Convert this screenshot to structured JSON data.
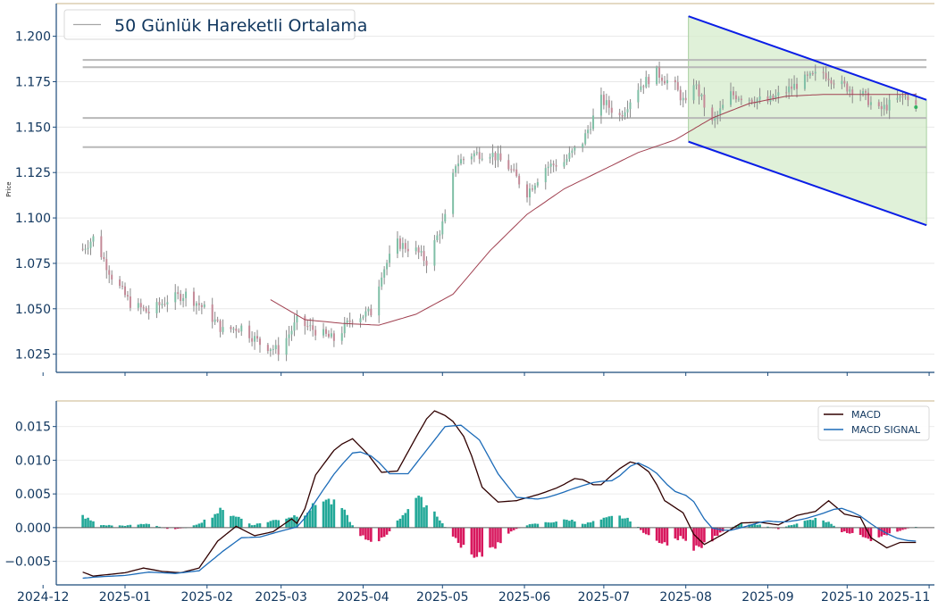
{
  "chart_data": [
    {
      "type": "candlestick",
      "ylabel": "Price",
      "ylim": [
        1.015,
        1.218
      ],
      "yticks": [
        1.025,
        1.05,
        1.075,
        1.1,
        1.125,
        1.15,
        1.175,
        1.2
      ],
      "ytick_labels": [
        "1.025",
        "1.050",
        "1.075",
        "1.100",
        "1.125",
        "1.150",
        "1.175",
        "1.200"
      ],
      "xlim": [
        "2024-12-06",
        "2025-11-03"
      ],
      "grid": "horizontal",
      "legend": {
        "position": "top-left",
        "entries": [
          "50 Günlük Hareketli Ortalama"
        ]
      },
      "horizontal_levels": [
        1.187,
        1.183,
        1.155,
        1.139
      ],
      "price_anchors": [
        [
          "2024-12-16",
          1.083
        ],
        [
          "2024-12-20",
          1.089
        ],
        [
          "2024-12-27",
          1.068
        ],
        [
          "2025-01-03",
          1.053
        ],
        [
          "2025-01-10",
          1.048
        ],
        [
          "2025-01-17",
          1.055
        ],
        [
          "2025-01-24",
          1.058
        ],
        [
          "2025-01-31",
          1.05
        ],
        [
          "2025-02-07",
          1.038
        ],
        [
          "2025-02-14",
          1.04
        ],
        [
          "2025-02-21",
          1.031
        ],
        [
          "2025-02-28",
          1.027
        ],
        [
          "2025-03-07",
          1.043
        ],
        [
          "2025-03-14",
          1.038
        ],
        [
          "2025-03-21",
          1.033
        ],
        [
          "2025-03-28",
          1.045
        ],
        [
          "2025-04-04",
          1.048
        ],
        [
          "2025-04-08",
          1.07
        ],
        [
          "2025-04-14",
          1.086
        ],
        [
          "2025-04-21",
          1.082
        ],
        [
          "2025-04-25",
          1.076
        ],
        [
          "2025-05-02",
          1.1
        ],
        [
          "2025-05-06",
          1.13
        ],
        [
          "2025-05-12",
          1.135
        ],
        [
          "2025-05-19",
          1.136
        ],
        [
          "2025-05-26",
          1.128
        ],
        [
          "2025-06-02",
          1.114
        ],
        [
          "2025-06-09",
          1.128
        ],
        [
          "2025-06-16",
          1.131
        ],
        [
          "2025-06-23",
          1.142
        ],
        [
          "2025-06-30",
          1.165
        ],
        [
          "2025-07-07",
          1.156
        ],
        [
          "2025-07-14",
          1.172
        ],
        [
          "2025-07-21",
          1.18
        ],
        [
          "2025-07-28",
          1.172
        ],
        [
          "2025-08-01",
          1.162
        ],
        [
          "2025-08-04",
          1.175
        ],
        [
          "2025-08-11",
          1.152
        ],
        [
          "2025-08-18",
          1.168
        ],
        [
          "2025-08-25",
          1.166
        ],
        [
          "2025-09-01",
          1.164
        ],
        [
          "2025-09-08",
          1.17
        ],
        [
          "2025-09-15",
          1.176
        ],
        [
          "2025-09-22",
          1.18
        ],
        [
          "2025-09-29",
          1.173
        ],
        [
          "2025-10-06",
          1.169
        ],
        [
          "2025-10-13",
          1.159
        ],
        [
          "2025-10-20",
          1.165
        ],
        [
          "2025-10-24",
          1.167
        ],
        [
          "2025-10-27",
          1.161
        ]
      ],
      "moving_average_50": [
        [
          "2025-02-25",
          1.055
        ],
        [
          "2025-03-10",
          1.044
        ],
        [
          "2025-03-24",
          1.042
        ],
        [
          "2025-04-07",
          1.041
        ],
        [
          "2025-04-21",
          1.047
        ],
        [
          "2025-05-05",
          1.058
        ],
        [
          "2025-05-19",
          1.082
        ],
        [
          "2025-06-02",
          1.102
        ],
        [
          "2025-06-16",
          1.116
        ],
        [
          "2025-06-30",
          1.126
        ],
        [
          "2025-07-14",
          1.136
        ],
        [
          "2025-07-28",
          1.143
        ],
        [
          "2025-08-11",
          1.155
        ],
        [
          "2025-08-25",
          1.163
        ],
        [
          "2025-09-08",
          1.167
        ],
        [
          "2025-09-22",
          1.168
        ],
        [
          "2025-10-06",
          1.168
        ],
        [
          "2025-10-20",
          1.168
        ],
        [
          "2025-10-27",
          1.168
        ]
      ],
      "channel": {
        "x": [
          "2025-08-02",
          "2025-10-31"
        ],
        "upper": [
          1.211,
          1.165
        ],
        "lower": [
          1.142,
          1.096
        ],
        "upper_color": "#0a1ee6",
        "lower_color": "#0a1ee6",
        "fill": "#d5eccc"
      },
      "colors": {
        "up": "#1d9484",
        "down": "#c42a5a",
        "candle": "#8a8a8a",
        "moving_average": "#a04050",
        "levels": "#b8b8b8",
        "axis": "#1b4a7a",
        "text": "#10365e",
        "top_border": "#c8b48a"
      }
    },
    {
      "type": "line+bar",
      "ylim": [
        -0.0085,
        0.0188
      ],
      "yticks": [
        -0.005,
        0,
        0.005,
        0.01,
        0.015
      ],
      "ytick_labels": [
        "−0.005",
        "0.000",
        "0.005",
        "0.010",
        "0.015"
      ],
      "xlim": [
        "2024-12-06",
        "2025-11-03"
      ],
      "xtick_dates": [
        "2024-12-01",
        "2025-01-01",
        "2025-02-01",
        "2025-03-01",
        "2025-04-01",
        "2025-05-01",
        "2025-06-01",
        "2025-07-01",
        "2025-08-01",
        "2025-09-01",
        "2025-10-01",
        "2025-11-01"
      ],
      "xtick_labels": [
        "2024-12",
        "2025-01",
        "2025-02",
        "2025-03",
        "2025-04",
        "2025-05",
        "2025-06",
        "2025-07",
        "2025-08",
        "2025-09",
        "2025-10",
        "2025-11"
      ],
      "grid": "horizontal",
      "legend": {
        "position": "top-right",
        "entries": [
          "MACD",
          "MACD SIGNAL"
        ]
      },
      "series": [
        {
          "name": "MACD",
          "color": "#300000",
          "points": [
            [
              "2024-12-16",
              -0.0066
            ],
            [
              "2024-12-20",
              -0.0072
            ],
            [
              "2025-01-01",
              -0.0067
            ],
            [
              "2025-01-08",
              -0.006
            ],
            [
              "2025-01-15",
              -0.0065
            ],
            [
              "2025-01-22",
              -0.0067
            ],
            [
              "2025-01-29",
              -0.006
            ],
            [
              "2025-02-05",
              -0.002
            ],
            [
              "2025-02-12",
              0.0002
            ],
            [
              "2025-02-19",
              -0.0012
            ],
            [
              "2025-02-26",
              -0.0006
            ],
            [
              "2025-03-05",
              0.0013
            ],
            [
              "2025-03-08",
              0.0003
            ],
            [
              "2025-03-14",
              0.0078
            ],
            [
              "2025-03-22",
              0.012
            ],
            [
              "2025-03-28",
              0.0132
            ],
            [
              "2025-04-03",
              0.0108
            ],
            [
              "2025-04-08",
              0.0082
            ],
            [
              "2025-04-14",
              0.0084
            ],
            [
              "2025-04-21",
              0.0134
            ],
            [
              "2025-04-27",
              0.0175
            ],
            [
              "2025-05-04",
              0.0163
            ],
            [
              "2025-05-10",
              0.013
            ],
            [
              "2025-05-16",
              0.006
            ],
            [
              "2025-05-22",
              0.0038
            ],
            [
              "2025-05-29",
              0.004
            ],
            [
              "2025-06-07",
              0.005
            ],
            [
              "2025-06-14",
              0.006
            ],
            [
              "2025-06-21",
              0.0075
            ],
            [
              "2025-06-29",
              0.006
            ],
            [
              "2025-07-06",
              0.0085
            ],
            [
              "2025-07-12",
              0.01
            ],
            [
              "2025-07-19",
              0.008
            ],
            [
              "2025-07-24",
              0.004
            ],
            [
              "2025-07-31",
              0.0022
            ],
            [
              "2025-08-04",
              -0.001
            ],
            [
              "2025-08-08",
              -0.0025
            ],
            [
              "2025-08-15",
              -0.001
            ],
            [
              "2025-08-22",
              0.0007
            ],
            [
              "2025-08-29",
              0.0008
            ],
            [
              "2025-09-05",
              0.0004
            ],
            [
              "2025-09-12",
              0.0018
            ],
            [
              "2025-09-19",
              0.0024
            ],
            [
              "2025-09-24",
              0.004
            ],
            [
              "2025-09-30",
              0.002
            ],
            [
              "2025-10-06",
              0.0015
            ],
            [
              "2025-10-10",
              -0.0015
            ],
            [
              "2025-10-16",
              -0.003
            ],
            [
              "2025-10-21",
              -0.0022
            ],
            [
              "2025-10-28",
              -0.0022
            ],
            [
              "2025-10-31",
              -0.0016
            ]
          ]
        },
        {
          "name": "MACD SIGNAL",
          "color": "#1c6bb8",
          "points": [
            [
              "2024-12-16",
              -0.0075
            ],
            [
              "2024-12-22",
              -0.0073
            ],
            [
              "2025-01-01",
              -0.0071
            ],
            [
              "2025-01-10",
              -0.0066
            ],
            [
              "2025-01-20",
              -0.0068
            ],
            [
              "2025-01-29",
              -0.0064
            ],
            [
              "2025-02-07",
              -0.0035
            ],
            [
              "2025-02-14",
              -0.0015
            ],
            [
              "2025-02-21",
              -0.0014
            ],
            [
              "2025-03-01",
              -0.0005
            ],
            [
              "2025-03-08",
              0.0002
            ],
            [
              "2025-03-15",
              0.0045
            ],
            [
              "2025-03-22",
              0.0085
            ],
            [
              "2025-03-29",
              0.0115
            ],
            [
              "2025-04-05",
              0.0105
            ],
            [
              "2025-04-11",
              0.008
            ],
            [
              "2025-04-18",
              0.008
            ],
            [
              "2025-04-25",
              0.0115
            ],
            [
              "2025-05-02",
              0.015
            ],
            [
              "2025-05-08",
              0.0152
            ],
            [
              "2025-05-15",
              0.013
            ],
            [
              "2025-05-22",
              0.008
            ],
            [
              "2025-05-29",
              0.0045
            ],
            [
              "2025-06-07",
              0.0042
            ],
            [
              "2025-06-14",
              0.005
            ],
            [
              "2025-06-21",
              0.006
            ],
            [
              "2025-06-28",
              0.0068
            ],
            [
              "2025-07-05",
              0.007
            ],
            [
              "2025-07-13",
              0.0098
            ],
            [
              "2025-07-20",
              0.0085
            ],
            [
              "2025-07-27",
              0.0055
            ],
            [
              "2025-08-03",
              0.0045
            ],
            [
              "2025-08-10",
              0.0
            ],
            [
              "2025-08-17",
              -0.0005
            ],
            [
              "2025-08-24",
              0.0002
            ],
            [
              "2025-08-31",
              0.001
            ],
            [
              "2025-09-07",
              0.0008
            ],
            [
              "2025-09-14",
              0.0012
            ],
            [
              "2025-09-21",
              0.002
            ],
            [
              "2025-09-28",
              0.003
            ],
            [
              "2025-10-05",
              0.002
            ],
            [
              "2025-10-12",
              0.0
            ],
            [
              "2025-10-19",
              -0.0015
            ],
            [
              "2025-10-25",
              -0.002
            ],
            [
              "2025-10-31",
              -0.002
            ]
          ]
        }
      ],
      "histogram_anchors": [
        [
          "2024-12-16",
          0.0018
        ],
        [
          "2024-12-22",
          0.0004
        ],
        [
          "2025-01-01",
          0.0003
        ],
        [
          "2025-01-10",
          0.0006
        ],
        [
          "2025-01-18",
          -0.0003
        ],
        [
          "2025-01-26",
          0.0001
        ],
        [
          "2025-02-01",
          0.0013
        ],
        [
          "2025-02-06",
          0.0026
        ],
        [
          "2025-02-12",
          0.0018
        ],
        [
          "2025-02-18",
          0.0004
        ],
        [
          "2025-02-25",
          0.001
        ],
        [
          "2025-03-03",
          0.0015
        ],
        [
          "2025-03-10",
          0.0022
        ],
        [
          "2025-03-17",
          0.0045
        ],
        [
          "2025-03-24",
          0.003
        ],
        [
          "2025-03-30",
          -0.001
        ],
        [
          "2025-04-05",
          -0.0022
        ],
        [
          "2025-04-10",
          -0.0012
        ],
        [
          "2025-04-15",
          0.0015
        ],
        [
          "2025-04-21",
          0.0045
        ],
        [
          "2025-04-27",
          0.003
        ],
        [
          "2025-05-03",
          -0.0005
        ],
        [
          "2025-05-10",
          -0.0035
        ],
        [
          "2025-05-15",
          -0.0045
        ],
        [
          "2025-05-21",
          -0.003
        ],
        [
          "2025-05-27",
          -0.0005
        ],
        [
          "2025-06-02",
          0.0004
        ],
        [
          "2025-06-10",
          0.0008
        ],
        [
          "2025-06-18",
          0.0012
        ],
        [
          "2025-06-24",
          0.0006
        ],
        [
          "2025-06-30",
          0.0012
        ],
        [
          "2025-07-06",
          0.0018
        ],
        [
          "2025-07-12",
          0.001
        ],
        [
          "2025-07-17",
          -0.0012
        ],
        [
          "2025-07-24",
          -0.0025
        ],
        [
          "2025-07-30",
          -0.0015
        ],
        [
          "2025-08-04",
          -0.0035
        ],
        [
          "2025-08-09",
          -0.0025
        ],
        [
          "2025-08-15",
          -0.0005
        ],
        [
          "2025-08-22",
          0.0006
        ],
        [
          "2025-08-29",
          0.0004
        ],
        [
          "2025-09-05",
          -0.0002
        ],
        [
          "2025-09-12",
          0.0007
        ],
        [
          "2025-09-19",
          0.0013
        ],
        [
          "2025-09-24",
          0.0008
        ],
        [
          "2025-09-29",
          -0.0006
        ],
        [
          "2025-10-04",
          -0.001
        ],
        [
          "2025-10-10",
          -0.0018
        ],
        [
          "2025-10-16",
          -0.0012
        ],
        [
          "2025-10-22",
          -0.0003
        ],
        [
          "2025-10-28",
          0.0002
        ],
        [
          "2025-10-31",
          0.0003
        ]
      ],
      "colors": {
        "positive": "#22a898",
        "negative": "#d8185e",
        "zero_line": "#606060",
        "axis": "#1b4a7a",
        "text": "#10365e",
        "top_border": "#c8b48a"
      }
    }
  ]
}
